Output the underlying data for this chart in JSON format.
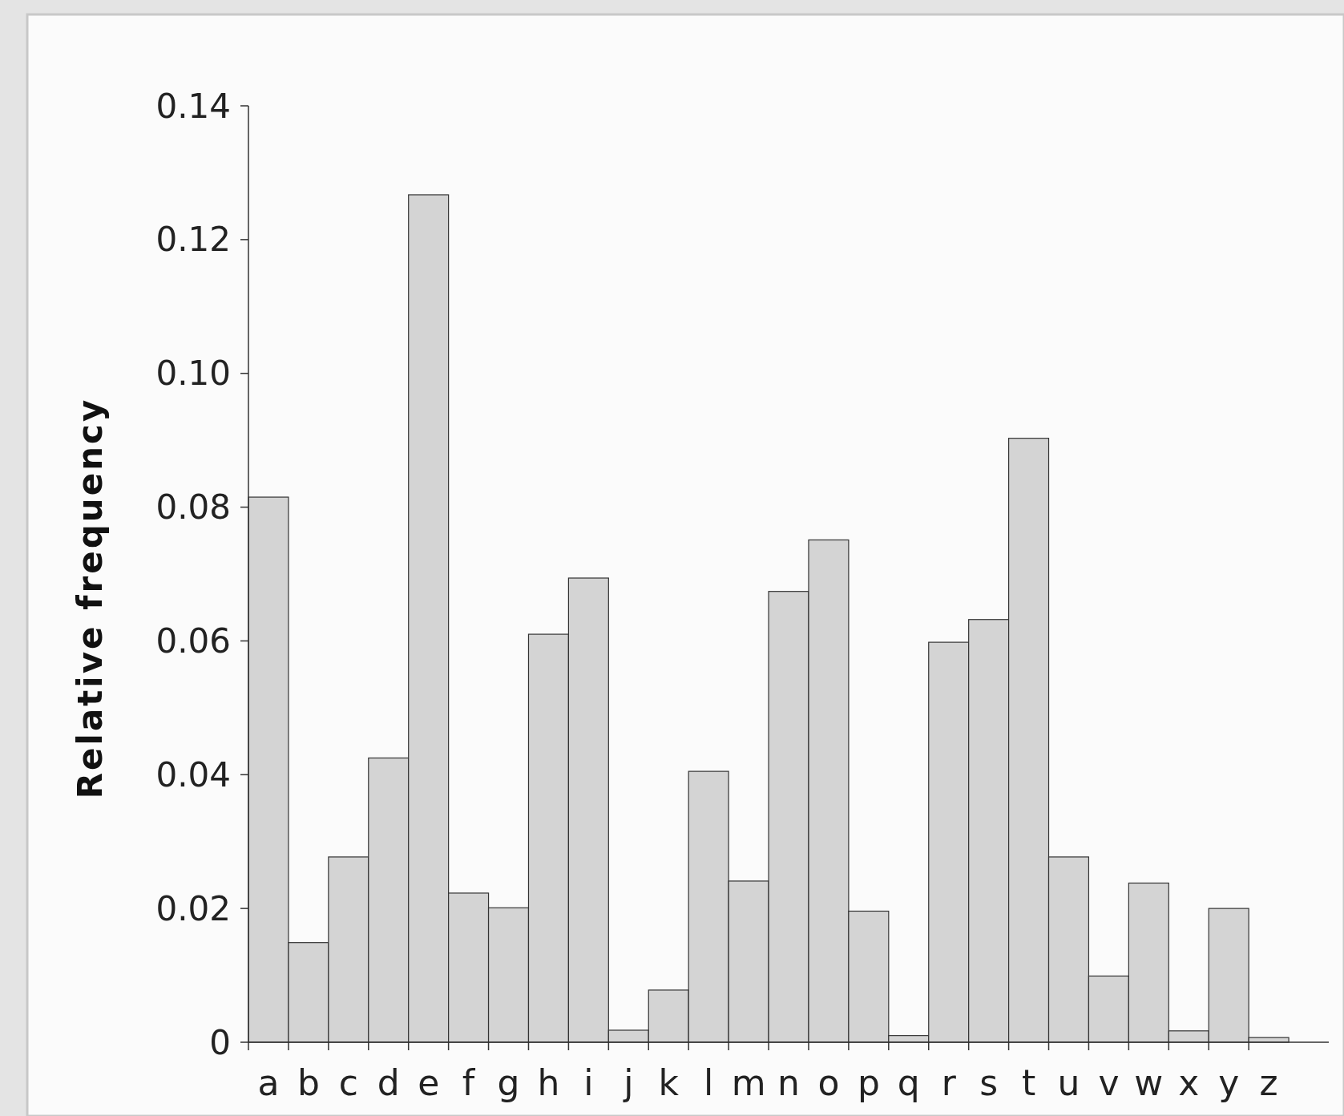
{
  "chart_data": {
    "type": "bar",
    "ylabel": "Relative frequency",
    "categories": [
      "a",
      "b",
      "c",
      "d",
      "e",
      "f",
      "g",
      "h",
      "i",
      "j",
      "k",
      "l",
      "m",
      "n",
      "o",
      "p",
      "q",
      "r",
      "s",
      "t",
      "u",
      "v",
      "w",
      "x",
      "y",
      "z"
    ],
    "values": [
      0.0815,
      0.0149,
      0.0277,
      0.0425,
      0.1267,
      0.0223,
      0.0201,
      0.061,
      0.0694,
      0.0018,
      0.0078,
      0.0405,
      0.0241,
      0.0674,
      0.0751,
      0.0196,
      0.001,
      0.0598,
      0.0632,
      0.0903,
      0.0277,
      0.0099,
      0.0238,
      0.0017,
      0.02,
      0.0007
    ],
    "color": "#d4d4d4",
    "ylim": [
      0,
      0.14
    ],
    "yticks": [
      {
        "value": 0,
        "label": "0"
      },
      {
        "value": 0.02,
        "label": "0.02"
      },
      {
        "value": 0.04,
        "label": "0.04"
      },
      {
        "value": 0.06,
        "label": "0.06"
      },
      {
        "value": 0.08,
        "label": "0.08"
      },
      {
        "value": 0.1,
        "label": "0.10"
      },
      {
        "value": 0.12,
        "label": "0.12"
      },
      {
        "value": 0.14,
        "label": "0.14"
      }
    ]
  }
}
